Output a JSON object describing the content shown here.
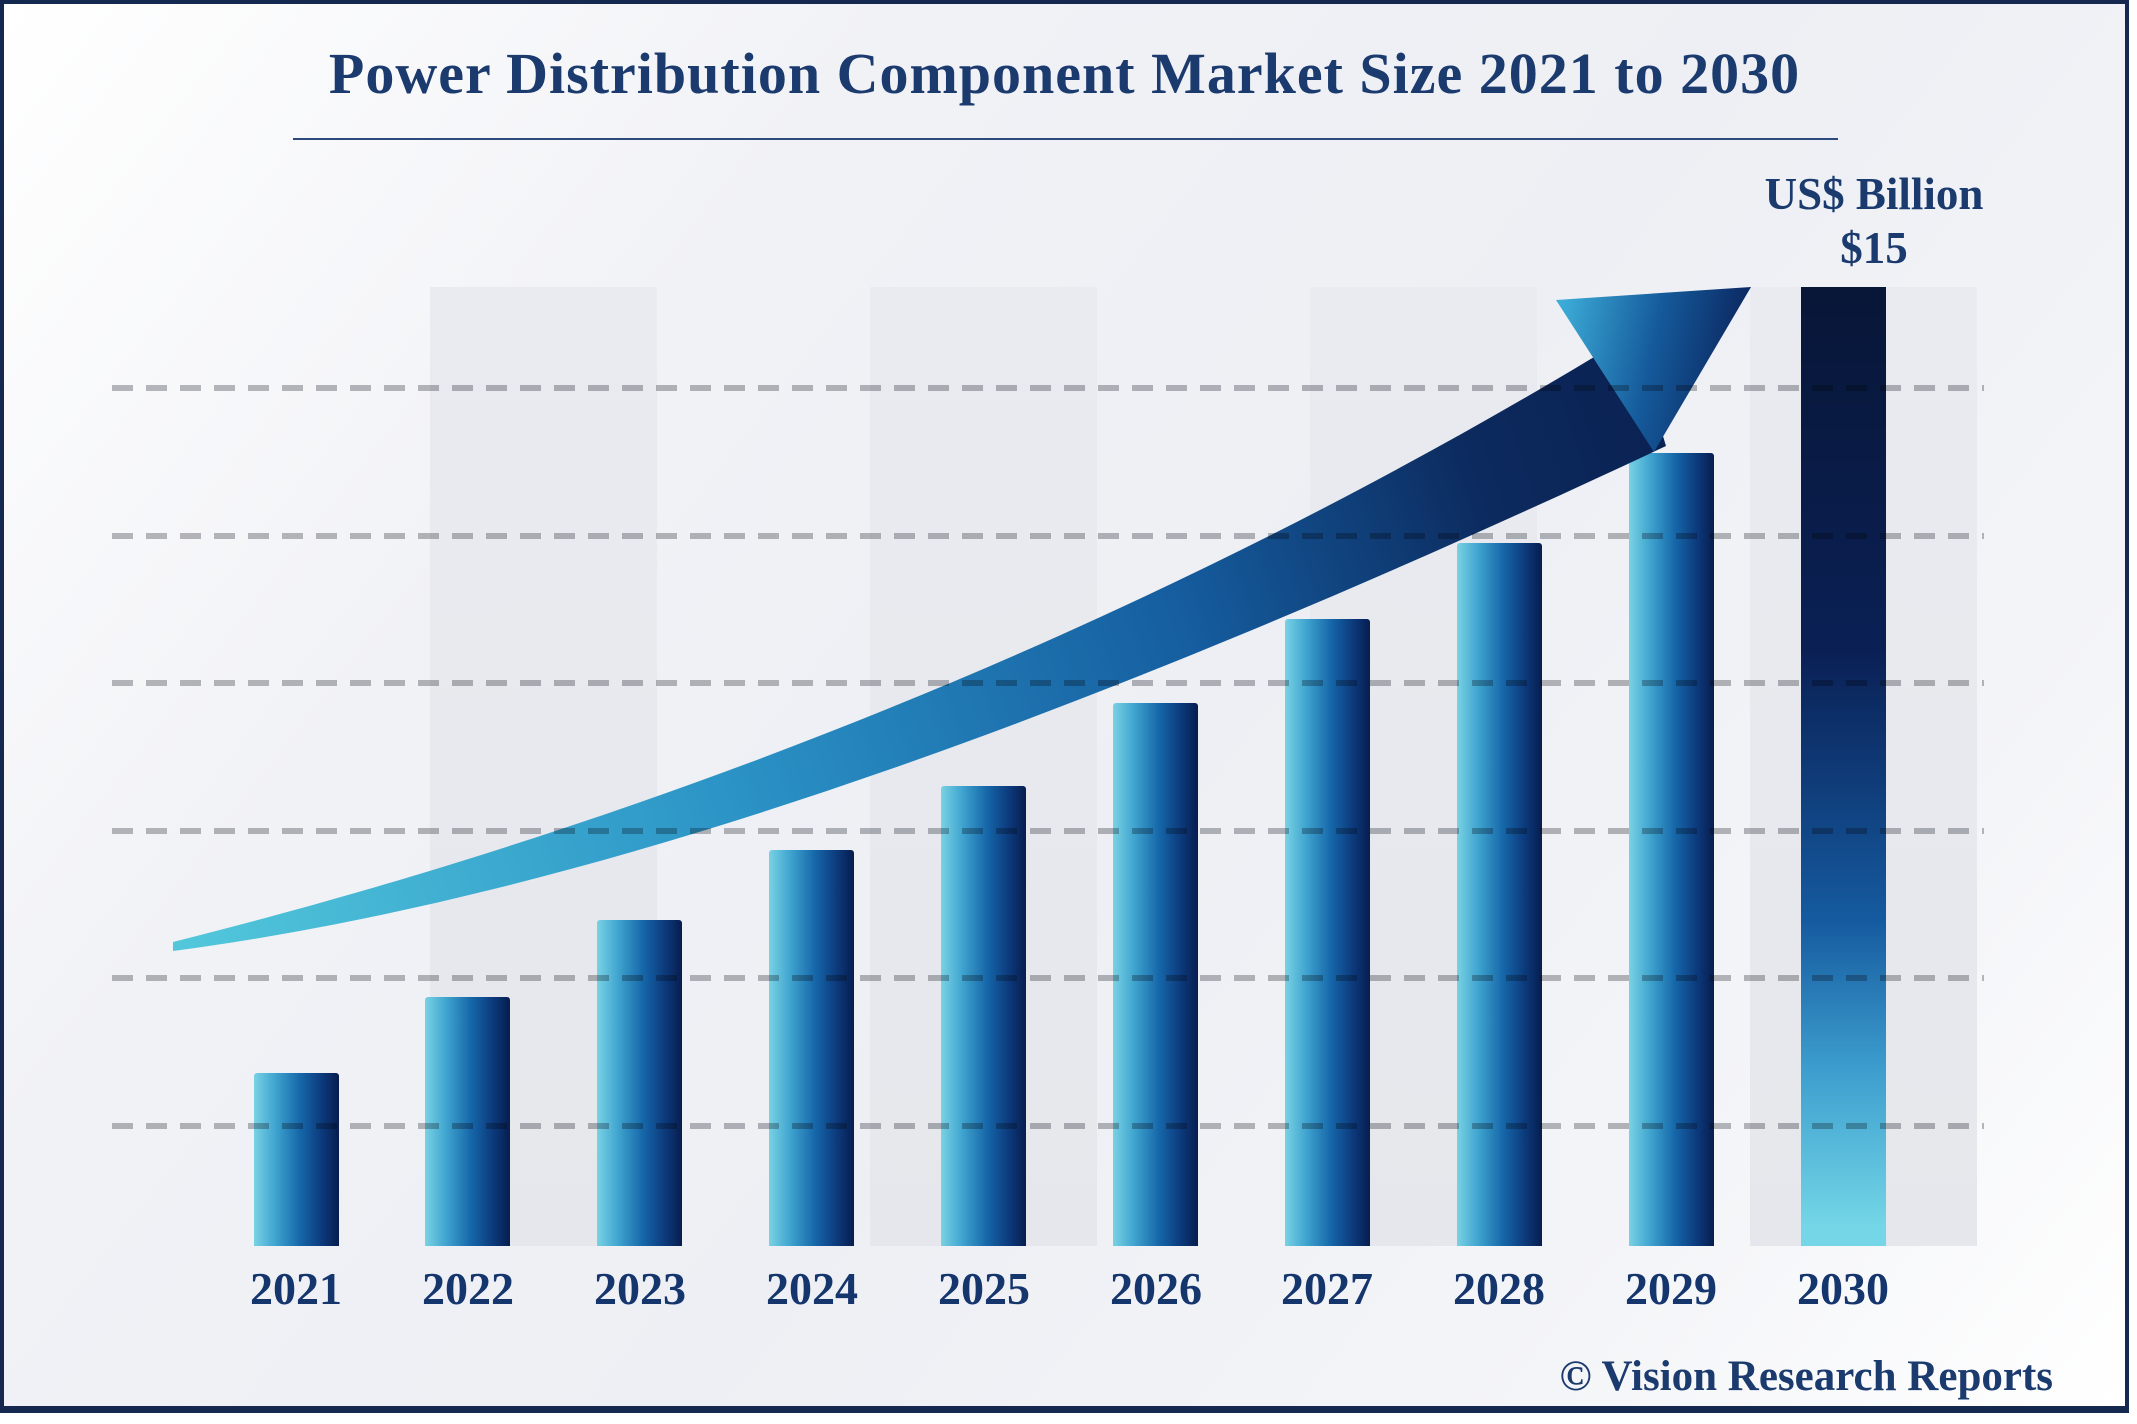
{
  "header": {
    "title": "Power Distribution Component Market Size 2021 to 2030"
  },
  "annotation": {
    "unit": "US$ Billion",
    "peak_value": "$15"
  },
  "footer": {
    "credit": "© Vision Research Reports"
  },
  "chart_data": {
    "type": "bar",
    "title": "Power Distribution Component Market Size 2021 to 2030",
    "unit": "US$ Billion",
    "categories": [
      "2021",
      "2022",
      "2023",
      "2024",
      "2025",
      "2026",
      "2027",
      "2028",
      "2029",
      "2030"
    ],
    "values": [
      2.7,
      3.9,
      5.1,
      6.2,
      7.2,
      8.5,
      9.8,
      11.0,
      12.4,
      15.0
    ],
    "ylim": [
      0,
      15
    ],
    "xlabel": "",
    "ylabel": "",
    "peak_label": {
      "category": "2030",
      "text": "$15",
      "unit_text": "US$ Billion"
    },
    "highlighted_category": "2030",
    "gridlines": {
      "orientation": "horizontal",
      "style": "dashed",
      "count": 6
    },
    "legend": "none",
    "trend_arrow": true
  },
  "colors": {
    "text_navy": "#1b3a6e",
    "border_navy": "#142850",
    "bar_gradient_left": "#79d2e4",
    "bar_gradient_mid": "#1565a8",
    "bar_gradient_right": "#071d4e",
    "final_bar_top": "#081637",
    "final_bar_bottom": "#74d6e6",
    "background_band": "#e7e9ee",
    "gridline_gray": "#a8a9ad",
    "arrow_start_teal": "#52c7db",
    "arrow_end_navy": "#0a1f50"
  }
}
